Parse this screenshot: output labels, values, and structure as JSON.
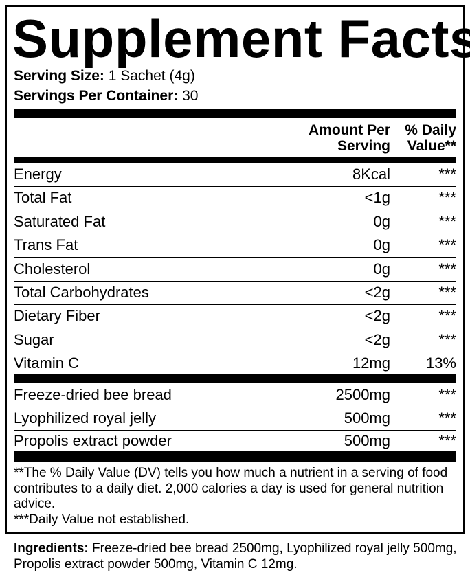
{
  "title": "Supplement Facts",
  "serving_size": {
    "label": "Serving Size:",
    "value": "1 Sachet (4g)"
  },
  "servings_per_container": {
    "label": "Servings Per Container:",
    "value": "30"
  },
  "header": {
    "amount_line1": "Amount Per",
    "amount_line2": "Serving",
    "dv_line1": "% Daily",
    "dv_line2": "Value**"
  },
  "nutrients": [
    {
      "name": "Energy",
      "amount": "8Kcal",
      "dv": "***"
    },
    {
      "name": "Total Fat",
      "amount": "<1g",
      "dv": "***"
    },
    {
      "name": "Saturated Fat",
      "amount": "0g",
      "dv": "***"
    },
    {
      "name": "Trans Fat",
      "amount": "0g",
      "dv": "***"
    },
    {
      "name": "Cholesterol",
      "amount": "0g",
      "dv": "***"
    },
    {
      "name": "Total Carbohydrates",
      "amount": "<2g",
      "dv": "***"
    },
    {
      "name": "Dietary Fiber",
      "amount": "<2g",
      "dv": "***"
    },
    {
      "name": "Sugar",
      "amount": "<2g",
      "dv": "***"
    },
    {
      "name": "Vitamin C",
      "amount": "12mg",
      "dv": "13%"
    }
  ],
  "ingredients_rows": [
    {
      "name": "Freeze-dried bee bread",
      "amount": "2500mg",
      "dv": "***"
    },
    {
      "name": "Lyophilized royal jelly",
      "amount": "500mg",
      "dv": "***"
    },
    {
      "name": "Propolis extract powder",
      "amount": "500mg",
      "dv": "***"
    }
  ],
  "footnotes": {
    "dv_note": "**The % Daily Value (DV) tells you how much a nutrient in a serving of food contributes to a daily diet. 2,000 calories a day is used for general nutrition advice.",
    "not_established": "***Daily Value not established."
  },
  "ingredients": {
    "label": "Ingredients:",
    "text": "Freeze-dried bee bread 2500mg, Lyophilized royal jelly 500mg, Propolis extract powder 500mg, Vitamin C 12mg."
  }
}
